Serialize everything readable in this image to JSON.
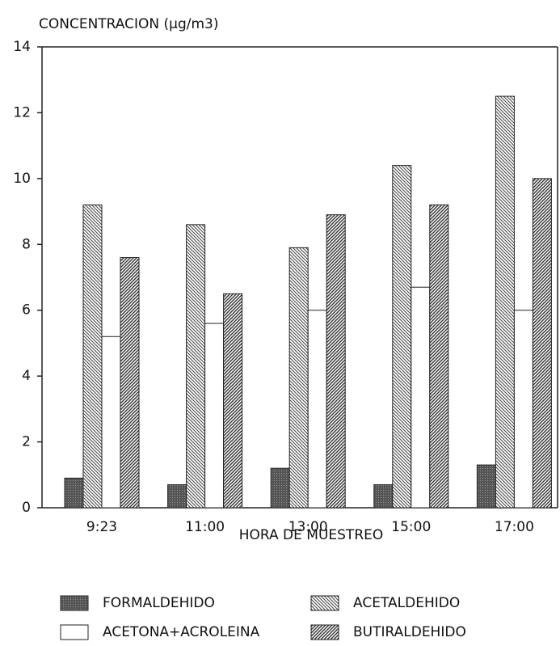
{
  "chart_data": {
    "type": "bar",
    "title": "CONCENTRACION (µg/m3)",
    "x_label": "HORA DE MUESTREO",
    "categories": [
      "9:23",
      "11:00",
      "13:00",
      "15:00",
      "17:00"
    ],
    "series": [
      {
        "name": "FORMALDEHIDO",
        "color": "#555555",
        "hatch": "solid",
        "values": [
          0.9,
          0.7,
          1.2,
          0.7,
          1.3
        ]
      },
      {
        "name": "ACETALDEHIDO",
        "color": "#444444",
        "hatch": "backslash",
        "values": [
          9.2,
          8.6,
          7.9,
          10.4,
          12.5
        ]
      },
      {
        "name": "ACETONA+ACROLEINA",
        "color": "#222222",
        "hatch": "none",
        "values": [
          5.2,
          5.6,
          6.0,
          6.7,
          6.0
        ]
      },
      {
        "name": "BUTIRALDEHIDO",
        "color": "#333333",
        "hatch": "slash",
        "values": [
          7.6,
          6.5,
          8.9,
          9.2,
          10.0
        ]
      }
    ],
    "ylim": [
      0,
      14
    ],
    "yticks": [
      0,
      2,
      4,
      6,
      8,
      10,
      12,
      14
    ]
  }
}
